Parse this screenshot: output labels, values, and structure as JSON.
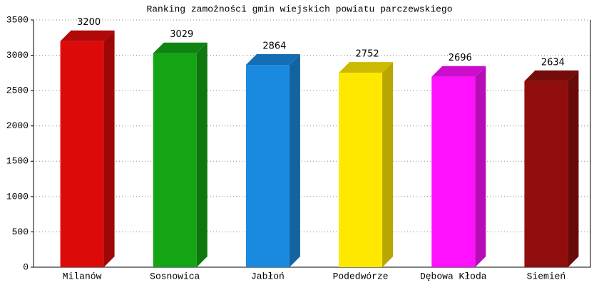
{
  "chart_data": {
    "type": "bar3d",
    "title": "Ranking zamożności gmin wiejskich powiatu parczewskiego",
    "categories": [
      "Milanów",
      "Sosnowica",
      "Jabłoń",
      "Podedwórze",
      "Dębowa Kłoda",
      "Siemień"
    ],
    "values": [
      3200,
      3029,
      2864,
      2752,
      2696,
      2634
    ],
    "colors": [
      "#dd0a0a",
      "#14a514",
      "#1a8ae0",
      "#ffe800",
      "#ff10ff",
      "#920e0e"
    ],
    "ylim": [
      0,
      3500
    ],
    "yticks": [
      0,
      500,
      1000,
      1500,
      2000,
      2500,
      3000,
      3500
    ],
    "grid": true
  }
}
